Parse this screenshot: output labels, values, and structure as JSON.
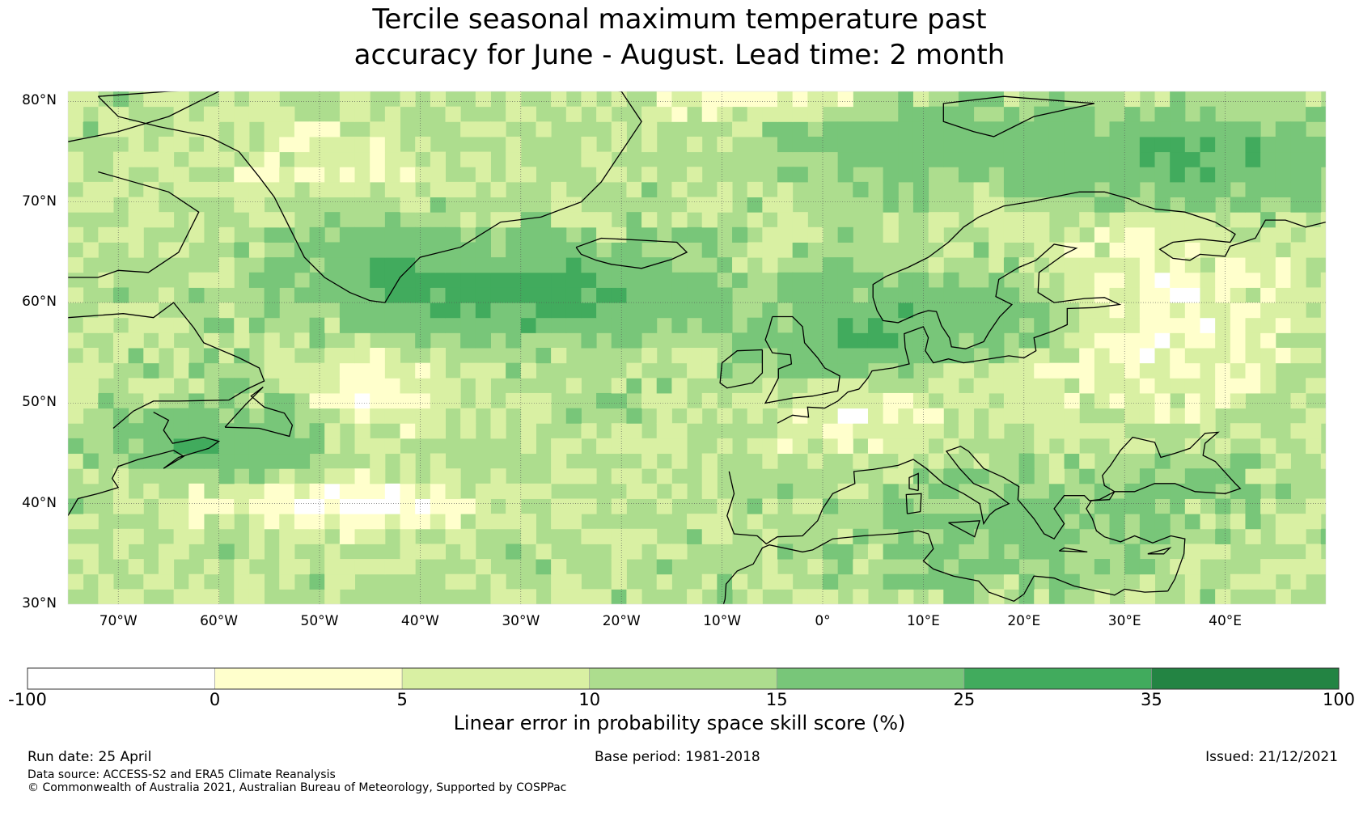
{
  "title_line1": "Tercile seasonal maximum temperature past",
  "title_line2": "accuracy for June - August. Lead time: 2 month",
  "map": {
    "lat_labels": [
      "80°N",
      "70°N",
      "60°N",
      "50°N",
      "40°N",
      "30°N"
    ],
    "lon_labels": [
      "70°W",
      "60°W",
      "50°W",
      "40°W",
      "30°W",
      "20°W",
      "10°W",
      "0°",
      "10°E",
      "20°E",
      "30°E",
      "40°E"
    ],
    "lat_range": [
      30,
      81
    ],
    "lon_range": [
      -75,
      50
    ]
  },
  "colorbar": {
    "title": "Linear error in probability space skill score (%)",
    "ticks": [
      "-100",
      "0",
      "5",
      "10",
      "15",
      "25",
      "35",
      "100"
    ],
    "colors": [
      "#ffffff",
      "#ffffcc",
      "#d9f0a3",
      "#addd8e",
      "#78c679",
      "#41ab5d",
      "#238443"
    ]
  },
  "footer": {
    "run_date": "Run date: 25 April",
    "base_period": "Base period: 1981-2018",
    "issued": "Issued: 21/12/2021",
    "data_source": "Data source: ACCESS-S2 and ERA5 Climate Reanalysis",
    "copyright": "© Commonwealth of Australia 2021, Australian Bureau of Meteorology, Supported by COSPPac"
  }
}
